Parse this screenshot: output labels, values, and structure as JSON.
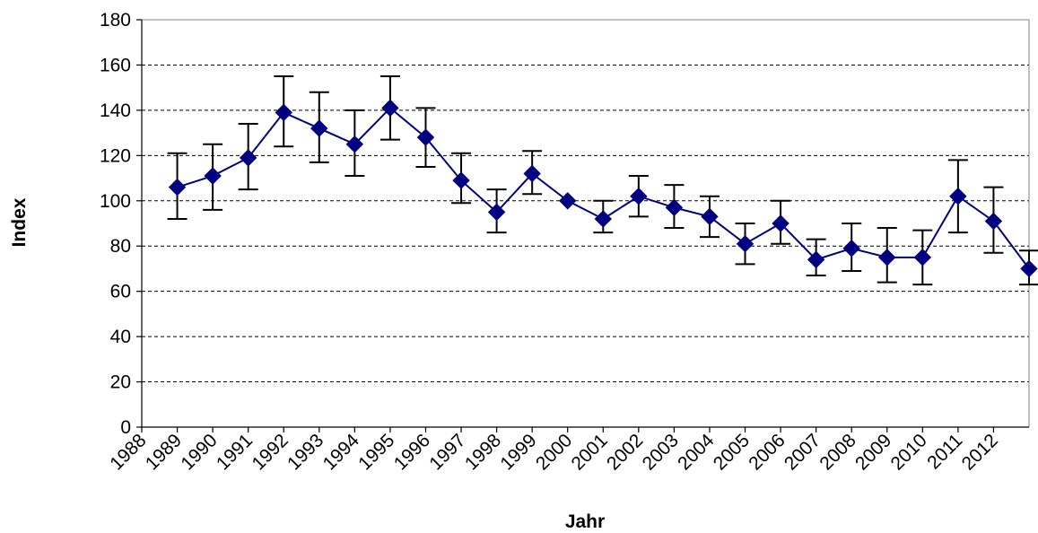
{
  "chart_data": {
    "type": "line",
    "title": "",
    "xlabel": "Jahr",
    "ylabel": "Index",
    "ylim": [
      0,
      180
    ],
    "yticks": [
      0,
      20,
      40,
      60,
      80,
      100,
      120,
      140,
      160,
      180
    ],
    "xtick_labels": [
      "1988",
      "1989",
      "1990",
      "1991",
      "1992",
      "1993",
      "1994",
      "1995",
      "1996",
      "1997",
      "1998",
      "1999",
      "2000",
      "2001",
      "2002",
      "2003",
      "2004",
      "2005",
      "2006",
      "2007",
      "2008",
      "2009",
      "2010",
      "2011",
      "2012"
    ],
    "grid": "horizontal dashed",
    "legend": "none",
    "series": [
      {
        "values": [
          106,
          111,
          119,
          139,
          132,
          125,
          141,
          128,
          109,
          95,
          112,
          100,
          92,
          102,
          97,
          93,
          81,
          90,
          74,
          79,
          75,
          75,
          102,
          91,
          70
        ],
        "error_low": [
          92,
          96,
          105,
          124,
          117,
          111,
          127,
          115,
          99,
          86,
          103,
          100,
          86,
          93,
          88,
          84,
          72,
          81,
          67,
          69,
          64,
          63,
          86,
          77,
          63
        ],
        "error_high": [
          121,
          125,
          134,
          155,
          148,
          140,
          155,
          141,
          121,
          105,
          122,
          100,
          100,
          111,
          107,
          102,
          90,
          100,
          83,
          90,
          88,
          87,
          118,
          106,
          78
        ],
        "color": "#000080",
        "marker": "diamond"
      }
    ]
  }
}
